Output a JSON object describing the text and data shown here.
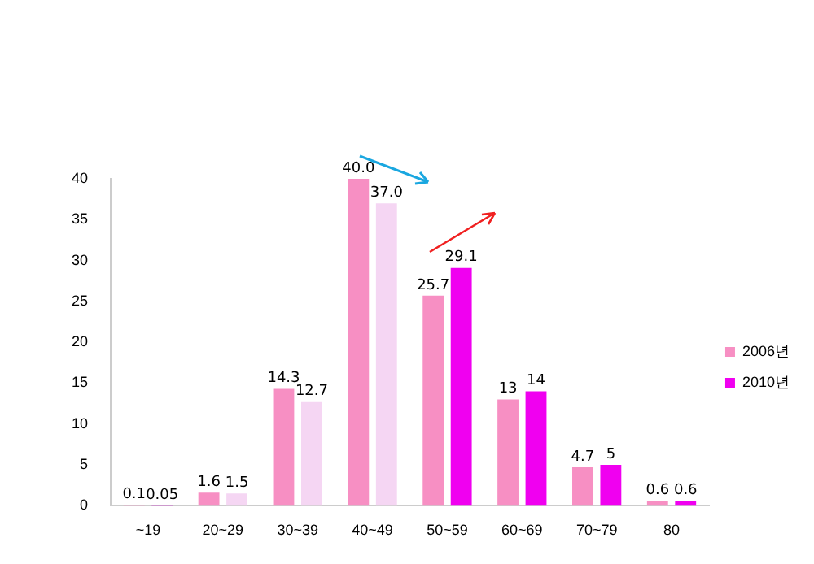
{
  "chart_data": {
    "type": "bar",
    "categories": [
      "~19",
      "20~29",
      "30~39",
      "40~49",
      "50~59",
      "60~69",
      "70~79",
      "80"
    ],
    "series": [
      {
        "name": "2006년",
        "color": "#f78fc3",
        "values": [
          0.1,
          1.6,
          14.3,
          40.0,
          25.7,
          13,
          4.7,
          0.6
        ],
        "value_labels": [
          "0.1",
          "1.6",
          "14.3",
          "40.0",
          "25.7",
          "13",
          "4.7",
          "0.6"
        ]
      },
      {
        "name": "2010년",
        "color": "#f000f0",
        "colors": [
          "#cc00cc",
          "#f5d6f3",
          "#f5d6f3",
          "#f5d6f3",
          "#f000f0",
          "#f000f0",
          "#f000f0",
          "#f000f0"
        ],
        "values": [
          0.05,
          1.5,
          12.7,
          37.0,
          29.1,
          14,
          5,
          0.6
        ],
        "value_labels": [
          "0.05",
          "1.5",
          "12.7",
          "37.0",
          "29.1",
          "14",
          "5",
          "0.6"
        ]
      }
    ],
    "ylim": [
      0,
      40
    ],
    "yticks": [
      0,
      5,
      10,
      15,
      20,
      25,
      30,
      35,
      40
    ],
    "grid": false,
    "legend": "right"
  }
}
